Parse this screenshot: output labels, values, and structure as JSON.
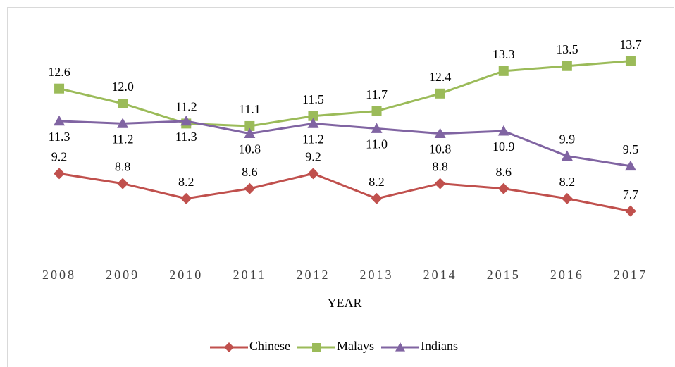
{
  "chart_data": {
    "type": "line",
    "x_label": "YEAR",
    "categories": [
      "2008",
      "2009",
      "2010",
      "2011",
      "2012",
      "2013",
      "2014",
      "2015",
      "2016",
      "2017"
    ],
    "ylim": [
      6,
      16
    ],
    "legend": "bottom",
    "series": [
      {
        "name": "Chinese",
        "color": "#c0504d",
        "marker": "diamond",
        "values": [
          9.2,
          8.8,
          8.2,
          8.6,
          9.2,
          8.2,
          8.8,
          8.6,
          8.2,
          7.7
        ],
        "value_labels": [
          "9.2",
          "8.8",
          "8.2",
          "8.6",
          "9.2",
          "8.2",
          "8.8",
          "8.6",
          "8.2",
          "7.7"
        ]
      },
      {
        "name": "Malays",
        "color": "#9bbb59",
        "marker": "square",
        "values": [
          12.6,
          12.0,
          11.2,
          11.1,
          11.5,
          11.7,
          12.4,
          13.3,
          13.5,
          13.7
        ],
        "value_labels": [
          "12.6",
          "12.0",
          "11.2",
          "11.1",
          "11.5",
          "11.7",
          "12.4",
          "13.3",
          "13.5",
          "13.7"
        ]
      },
      {
        "name": "Indians",
        "color": "#8064a2",
        "marker": "triangle",
        "values": [
          11.3,
          11.2,
          11.3,
          10.8,
          11.2,
          11.0,
          10.8,
          10.9,
          9.9,
          9.5
        ],
        "value_labels": [
          "11.3",
          "11.2",
          "11.3",
          "10.8",
          "11.2",
          "11.0",
          "10.8",
          "10.9",
          "9.9",
          "9.5"
        ]
      }
    ]
  }
}
